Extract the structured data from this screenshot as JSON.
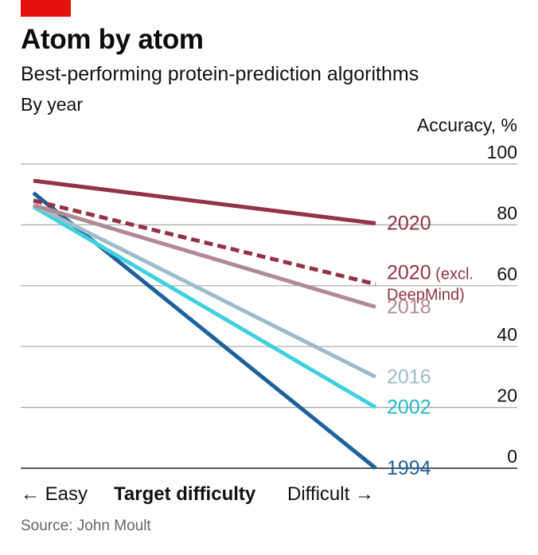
{
  "header": {
    "title": "Atom by atom",
    "subtitle": "Best-performing protein-prediction algorithms",
    "subsubtitle": "By year"
  },
  "source": "Source: John Moult",
  "chart_data": {
    "type": "line",
    "title": "Atom by atom",
    "subtitle": "Best-performing protein-prediction algorithms",
    "ylabel": "Accuracy, %",
    "xlabel": "Target difficulty",
    "x_left_label": "← Easy",
    "x_right_label": "Difficult →",
    "ylim": [
      0,
      100
    ],
    "y_ticks": [
      0,
      20,
      40,
      60,
      80,
      100
    ],
    "grid": true,
    "x": [
      "Easy",
      "Difficult"
    ],
    "series": [
      {
        "name": "2020",
        "label_lines": [
          "2020"
        ],
        "values": [
          94.5,
          80.5
        ],
        "color": "#933344",
        "dashed": false
      },
      {
        "name": "2020 (excl. DeepMind)",
        "label_lines": [
          "2020 (excl.",
          "DeepMind)"
        ],
        "values": [
          88,
          60.5
        ],
        "color": "#933344",
        "dashed": true
      },
      {
        "name": "2018",
        "label_lines": [
          "2018"
        ],
        "values": [
          86.5,
          53
        ],
        "color": "#b28a94",
        "dashed": false
      },
      {
        "name": "2016",
        "label_lines": [
          "2016"
        ],
        "values": [
          86.5,
          30
        ],
        "color": "#9fbccb",
        "dashed": false
      },
      {
        "name": "2002",
        "label_lines": [
          "2002"
        ],
        "values": [
          86,
          20
        ],
        "color": "#3fd1de",
        "dashed": false
      },
      {
        "name": "1994",
        "label_lines": [
          "1994"
        ],
        "values": [
          90.5,
          0
        ],
        "color": "#1f629b",
        "dashed": false
      }
    ]
  }
}
